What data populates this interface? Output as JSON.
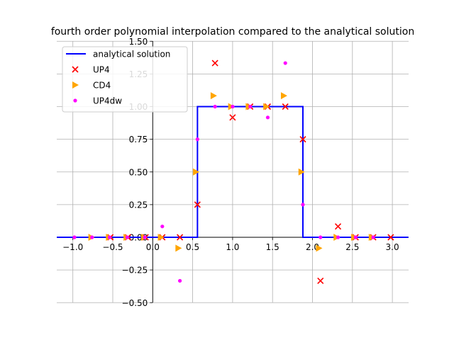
{
  "chart_data": {
    "type": "scatter",
    "title": "fourth order polynomial interpolation compared to the analytical solution",
    "xlabel": "",
    "ylabel": "",
    "xlim": [
      -1.2,
      3.2
    ],
    "ylim": [
      -0.5,
      1.5
    ],
    "xticks": [
      -1.0,
      -0.5,
      0.0,
      0.5,
      1.0,
      1.5,
      2.0,
      2.5,
      3.0
    ],
    "xtick_labels": [
      "−1.0",
      "−0.5",
      "0.0",
      "0.5",
      "1.0",
      "1.5",
      "2.0",
      "2.5",
      "3.0"
    ],
    "yticks": [
      -0.5,
      -0.25,
      0.0,
      0.25,
      0.5,
      0.75,
      1.0,
      1.25,
      1.5
    ],
    "ytick_labels": [
      "−0.50",
      "−0.25",
      "0.00",
      "0.25",
      "0.50",
      "0.75",
      "1.00",
      "1.25",
      "1.50"
    ],
    "grid": true,
    "legend_position": "top-left",
    "series": [
      {
        "name": "analytical solution",
        "kind": "line",
        "color": "#0000ff",
        "x": [
          -1.2,
          0.56,
          0.56,
          1.88,
          1.88,
          3.2
        ],
        "y": [
          0,
          0,
          1,
          1,
          0,
          0
        ]
      },
      {
        "name": "UP4",
        "kind": "marker-x",
        "color": "#ff0000",
        "x": [
          -0.53,
          -0.31,
          -0.09,
          0.12,
          0.34,
          0.56,
          0.78,
          1.0,
          1.22,
          1.44,
          1.66,
          1.88,
          2.1,
          2.32,
          2.54,
          2.76,
          2.98
        ],
        "y": [
          0,
          0,
          0,
          0,
          0,
          0.25,
          1.333,
          0.917,
          1.0,
          1.0,
          1.0,
          0.75,
          -0.333,
          0.083,
          0,
          0,
          0
        ]
      },
      {
        "name": "CD4",
        "kind": "marker-triangle-right",
        "color": "#ffa500",
        "x": [
          -0.77,
          -0.55,
          -0.33,
          -0.11,
          0.1,
          0.32,
          0.54,
          0.76,
          0.98,
          1.2,
          1.42,
          1.64,
          1.86,
          2.08,
          2.3,
          2.52,
          2.74
        ],
        "y": [
          0,
          0,
          0,
          0,
          0,
          -0.083,
          0.5,
          1.083,
          1.0,
          1.0,
          1.0,
          1.083,
          0.5,
          -0.083,
          0,
          0,
          0
        ]
      },
      {
        "name": "UP4dw",
        "kind": "marker-dot",
        "color": "#ff00ff",
        "x": [
          -0.98,
          -0.76,
          -0.54,
          -0.32,
          -0.1,
          0.12,
          0.34,
          0.56,
          0.78,
          1.0,
          1.22,
          1.44,
          1.66,
          1.88,
          2.1,
          2.32,
          2.54,
          2.76
        ],
        "y": [
          0,
          0,
          0,
          0,
          0,
          0.083,
          -0.333,
          0.75,
          1.0,
          1.0,
          1.0,
          0.917,
          1.333,
          0.25,
          0,
          0,
          0,
          0
        ]
      }
    ]
  }
}
